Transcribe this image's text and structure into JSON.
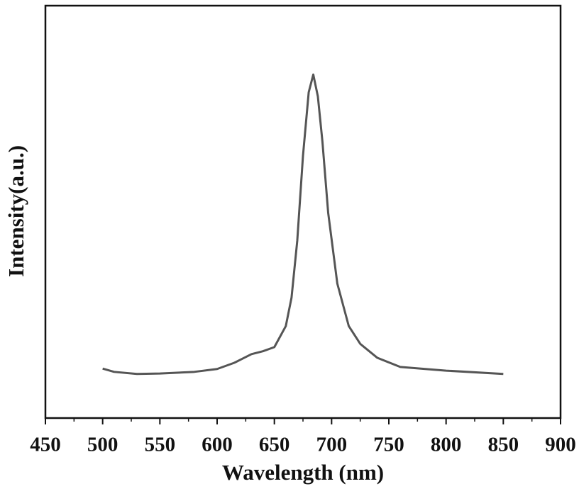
{
  "chart_data": {
    "type": "line",
    "xlabel": "Wavelength (nm)",
    "ylabel": "Intensity(a.u.)",
    "x": [
      500,
      510,
      530,
      550,
      580,
      600,
      615,
      630,
      640,
      650,
      660,
      665,
      670,
      675,
      680,
      684,
      688,
      692,
      697,
      705,
      715,
      725,
      740,
      760,
      800,
      850
    ],
    "series": [
      {
        "color": "#555555",
        "values": [
          0.12,
          0.112,
          0.107,
          0.108,
          0.112,
          0.119,
          0.134,
          0.155,
          0.162,
          0.172,
          0.223,
          0.292,
          0.43,
          0.636,
          0.79,
          0.833,
          0.78,
          0.67,
          0.498,
          0.326,
          0.223,
          0.18,
          0.146,
          0.124,
          0.115,
          0.107
        ]
      }
    ],
    "xlim": [
      450,
      900
    ],
    "xticks": [
      450,
      500,
      550,
      600,
      650,
      700,
      750,
      800,
      850,
      900
    ],
    "xminorticks": [
      475,
      525,
      575,
      625,
      675,
      725,
      775,
      825,
      875
    ],
    "ylim": [
      0,
      1
    ]
  }
}
